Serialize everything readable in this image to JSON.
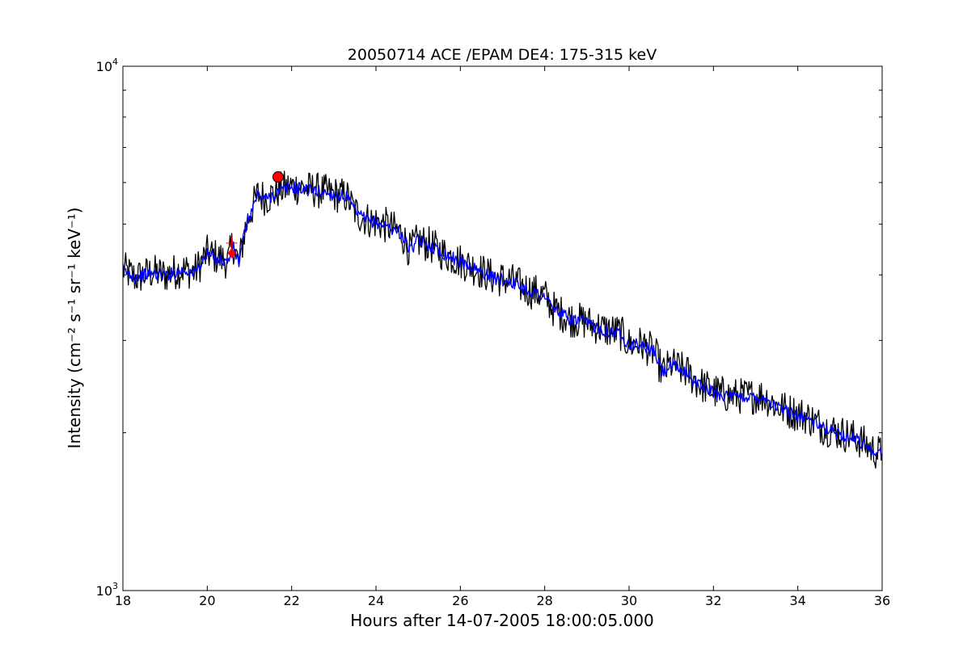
{
  "chart_data": {
    "type": "line",
    "title": "20050714 ACE /EPAM DE4: 175-315 keV",
    "xlabel": "Hours after 14-07-2005 18:00:05.000",
    "ylabel": "Intensity (cm⁻² s⁻¹ sr⁻¹ keV⁻¹)",
    "xlim": [
      18,
      36
    ],
    "ylim": [
      1000,
      10000
    ],
    "yscale": "log",
    "grid": false,
    "x_ticks": [
      18,
      20,
      22,
      24,
      26,
      28,
      30,
      32,
      34,
      36
    ],
    "y_ticks": [
      1000,
      10000
    ],
    "y_tick_labels": [
      {
        "base": "10",
        "exp": "3"
      },
      {
        "base": "10",
        "exp": "4"
      }
    ],
    "series": [
      {
        "style": "raw",
        "color": "#000000",
        "x": [
          18.0,
          18.3,
          18.7,
          19.0,
          19.4,
          19.7,
          20.0,
          20.3,
          20.5,
          20.6,
          20.75,
          20.9,
          21.0,
          21.2,
          21.4,
          21.7,
          22.0,
          22.3,
          22.6,
          23.0,
          23.3,
          23.5,
          23.6,
          23.8,
          24.0,
          24.3,
          24.6,
          24.8,
          25.0,
          25.3,
          25.6,
          26.0,
          26.4,
          26.8,
          27.2,
          27.6,
          28.0,
          28.2,
          28.6,
          29.0,
          29.4,
          29.8,
          30.0,
          30.3,
          30.6,
          30.8,
          31.0,
          31.4,
          31.6,
          32.0,
          32.4,
          32.8,
          33.2,
          33.5,
          33.8,
          34.2,
          34.6,
          35.0,
          35.4,
          35.8,
          36.0
        ],
        "y": [
          4100,
          3950,
          4050,
          4000,
          4100,
          4050,
          4400,
          4300,
          4250,
          4600,
          4200,
          4900,
          5200,
          5700,
          5600,
          5800,
          5900,
          5850,
          5800,
          5700,
          5650,
          5300,
          5200,
          5100,
          5050,
          4950,
          4800,
          4450,
          4650,
          4550,
          4400,
          4250,
          4100,
          3950,
          3900,
          3750,
          3650,
          3450,
          3300,
          3250,
          3150,
          3100,
          2950,
          2950,
          2850,
          2600,
          2700,
          2600,
          2500,
          2400,
          2350,
          2350,
          2350,
          2250,
          2200,
          2150,
          2050,
          2000,
          1950,
          1850,
          1820
        ]
      },
      {
        "style": "smoothed",
        "color": "#0000ff",
        "x": [
          18.0,
          18.3,
          18.7,
          19.0,
          19.4,
          19.7,
          20.0,
          20.3,
          20.5,
          20.6,
          20.75,
          20.9,
          21.0,
          21.2,
          21.4,
          21.7,
          22.0,
          22.3,
          22.6,
          23.0,
          23.3,
          23.5,
          23.6,
          23.8,
          24.0,
          24.3,
          24.6,
          24.8,
          25.0,
          25.3,
          25.6,
          26.0,
          26.4,
          26.8,
          27.2,
          27.6,
          28.0,
          28.2,
          28.6,
          29.0,
          29.4,
          29.8,
          30.0,
          30.3,
          30.6,
          30.8,
          31.0,
          31.4,
          31.6,
          32.0,
          32.4,
          32.8,
          33.2,
          33.5,
          33.8,
          34.2,
          34.6,
          35.0,
          35.4,
          35.8,
          36.0
        ],
        "y": [
          4080,
          3960,
          4030,
          3990,
          4080,
          4040,
          4370,
          4280,
          4230,
          4550,
          4220,
          4880,
          5180,
          5680,
          5580,
          5780,
          5880,
          5830,
          5780,
          5690,
          5640,
          5290,
          5190,
          5090,
          5040,
          4940,
          4790,
          4460,
          4640,
          4540,
          4390,
          4240,
          4090,
          3940,
          3890,
          3740,
          3640,
          3450,
          3290,
          3240,
          3140,
          3090,
          2950,
          2940,
          2840,
          2610,
          2690,
          2590,
          2490,
          2390,
          2340,
          2340,
          2340,
          2240,
          2190,
          2140,
          2040,
          1990,
          1940,
          1850,
          1820
        ]
      }
    ],
    "markers": [
      {
        "type": "circle",
        "color": "#ff0000",
        "x": 21.68,
        "y": 6150
      },
      {
        "type": "diamond",
        "color": "#ff0000",
        "x": 20.58,
        "y": 4400
      },
      {
        "type": "cross",
        "color": "#ff0000",
        "x": 20.58,
        "y": 4600
      }
    ]
  }
}
